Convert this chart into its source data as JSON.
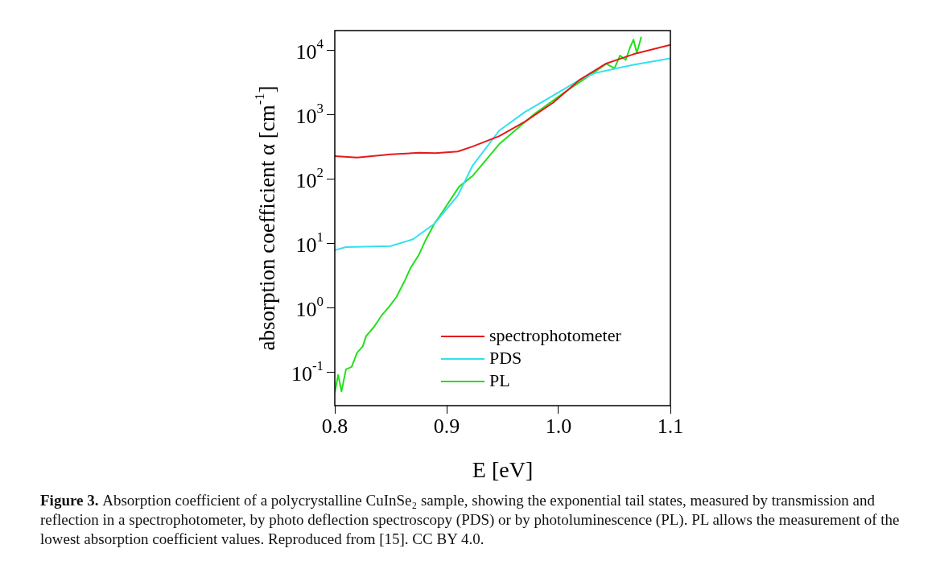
{
  "chart_data": {
    "type": "line",
    "xlabel": "E [eV]",
    "ylabel": "absorption coefficient α [cm$^{-1}$]",
    "log": "y",
    "legend": "bottom right",
    "marker": "none",
    "xlim": [
      0.8,
      1.1
    ],
    "xticks": [
      0.8,
      0.9,
      {
        "value": 1,
        "label": "1.0"
      },
      1.1
    ],
    "ylim": [
      0.03,
      20000
    ],
    "yticks": [
      {
        "value": 0.1,
        "label": "10$^{-1}$"
      },
      {
        "value": 1,
        "label": "10$^{0}$"
      },
      {
        "value": 10,
        "label": "10$^{1}$"
      },
      {
        "value": 100,
        "label": "10$^{2}$"
      },
      {
        "value": 1000,
        "label": "10$^{3}$"
      },
      {
        "value": 10000,
        "label": "10$^{4}$"
      }
    ],
    "series": [
      {
        "name": "spectrophotometer",
        "color": "#e31a1c",
        "x": [
          0.8,
          0.82,
          0.85,
          0.875,
          0.89,
          0.91,
          0.923,
          0.947,
          0.97,
          0.995,
          1.019,
          1.042,
          1.067,
          1.1
        ],
        "values": [
          224,
          213,
          240,
          253,
          250,
          265,
          316,
          460,
          770,
          1510,
          3450,
          6100,
          8600,
          12000
        ]
      },
      {
        "name": "PDS",
        "color": "#33e0f0",
        "x": [
          0.8,
          0.81,
          0.85,
          0.87,
          0.889,
          0.91,
          0.923,
          0.947,
          0.97,
          0.995,
          1.019,
          1.033,
          1.067,
          1.1
        ],
        "values": [
          7.8,
          8.7,
          9,
          11.5,
          20,
          55,
          158,
          560,
          1090,
          1950,
          3450,
          4400,
          5900,
          7400
        ]
      },
      {
        "name": "PL",
        "color": "#22e01a",
        "x": [
          0.8,
          0.803,
          0.806,
          0.81,
          0.815,
          0.82,
          0.825,
          0.828,
          0.835,
          0.842,
          0.848,
          0.855,
          0.862,
          0.868,
          0.875,
          0.881,
          0.889,
          0.897,
          0.911,
          0.923,
          0.947,
          0.978,
          1.006,
          1.031,
          1.043,
          1.05,
          1.055,
          1.06,
          1.064,
          1.067,
          1.07,
          1.074
        ],
        "values": [
          0.048,
          0.09,
          0.05,
          0.11,
          0.12,
          0.2,
          0.25,
          0.36,
          0.5,
          0.76,
          1.0,
          1.45,
          2.5,
          4.2,
          6.5,
          11,
          20,
          32,
          75,
          110,
          345,
          1000,
          2240,
          4400,
          6100,
          5200,
          8200,
          7000,
          11000,
          14500,
          9000,
          16000
        ]
      }
    ],
    "annotations": [
      "Figure 3.",
      "Absorption coefficient of a polycrystalline CuInSe₂ sample, showing the exponential tail states, measured by transmission and reflection in a spectrophotometer, by photo deflection spectroscopy (PDS) or by photoluminescence (PL). PL allows the measurement of the lowest absorption coefficient values. Reproduced from [15]. CC BY 4.0."
    ]
  }
}
